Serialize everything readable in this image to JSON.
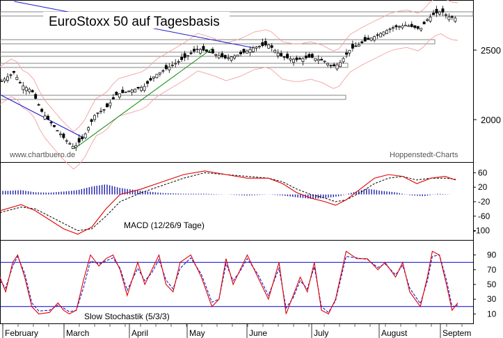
{
  "chart_data": [
    {
      "type": "candlestick",
      "title": "EuroStoxx 50 auf Tagesbasis",
      "source_left": "www.chartbuero.de",
      "source_right": "Hoppenstedt-Charts",
      "y_ticks": [
        2000,
        2500
      ],
      "ylim": [
        1700,
        2850
      ],
      "close_anchors": [
        [
          0,
          2270
        ],
        [
          20,
          2340
        ],
        [
          30,
          2250
        ],
        [
          45,
          2210
        ],
        [
          60,
          2050
        ],
        [
          75,
          1960
        ],
        [
          90,
          1870
        ],
        [
          105,
          1800
        ],
        [
          118,
          1870
        ],
        [
          135,
          2040
        ],
        [
          150,
          2080
        ],
        [
          165,
          2180
        ],
        [
          185,
          2210
        ],
        [
          205,
          2240
        ],
        [
          220,
          2320
        ],
        [
          240,
          2380
        ],
        [
          260,
          2440
        ],
        [
          280,
          2510
        ],
        [
          300,
          2480
        ],
        [
          320,
          2440
        ],
        [
          340,
          2470
        ],
        [
          360,
          2520
        ],
        [
          380,
          2540
        ],
        [
          400,
          2450
        ],
        [
          420,
          2430
        ],
        [
          440,
          2450
        ],
        [
          460,
          2420
        ],
        [
          470,
          2380
        ],
        [
          480,
          2400
        ],
        [
          495,
          2500
        ],
        [
          515,
          2560
        ],
        [
          535,
          2610
        ],
        [
          555,
          2660
        ],
        [
          575,
          2680
        ],
        [
          595,
          2650
        ],
        [
          605,
          2720
        ],
        [
          615,
          2760
        ],
        [
          625,
          2780
        ],
        [
          635,
          2740
        ],
        [
          645,
          2730
        ]
      ],
      "support_lines": [
        2760,
        2560,
        2470,
        2390,
        2160
      ]
    },
    {
      "type": "line",
      "label": "MACD (12/26/9 Tage)",
      "y_ticks": [
        60,
        20,
        -20,
        -60,
        -100
      ],
      "ylim": [
        -120,
        80
      ],
      "macd": [
        [
          0,
          -45
        ],
        [
          30,
          -28
        ],
        [
          50,
          -45
        ],
        [
          70,
          -70
        ],
        [
          90,
          -95
        ],
        [
          110,
          -110
        ],
        [
          130,
          -90
        ],
        [
          150,
          -40
        ],
        [
          170,
          0
        ],
        [
          200,
          15
        ],
        [
          230,
          35
        ],
        [
          260,
          55
        ],
        [
          290,
          65
        ],
        [
          320,
          55
        ],
        [
          350,
          45
        ],
        [
          380,
          45
        ],
        [
          400,
          30
        ],
        [
          420,
          5
        ],
        [
          440,
          -10
        ],
        [
          460,
          -20
        ],
        [
          475,
          -30
        ],
        [
          490,
          -15
        ],
        [
          510,
          15
        ],
        [
          530,
          45
        ],
        [
          550,
          55
        ],
        [
          570,
          50
        ],
        [
          590,
          30
        ],
        [
          610,
          45
        ],
        [
          630,
          50
        ],
        [
          645,
          40
        ]
      ],
      "signal": [
        [
          0,
          -50
        ],
        [
          30,
          -35
        ],
        [
          50,
          -40
        ],
        [
          70,
          -60
        ],
        [
          90,
          -80
        ],
        [
          110,
          -100
        ],
        [
          130,
          -95
        ],
        [
          150,
          -60
        ],
        [
          170,
          -20
        ],
        [
          200,
          5
        ],
        [
          230,
          25
        ],
        [
          260,
          45
        ],
        [
          290,
          60
        ],
        [
          320,
          55
        ],
        [
          350,
          50
        ],
        [
          380,
          45
        ],
        [
          400,
          35
        ],
        [
          420,
          15
        ],
        [
          440,
          0
        ],
        [
          460,
          -10
        ],
        [
          475,
          -20
        ],
        [
          490,
          -15
        ],
        [
          510,
          5
        ],
        [
          530,
          30
        ],
        [
          550,
          45
        ],
        [
          570,
          50
        ],
        [
          590,
          40
        ],
        [
          610,
          45
        ],
        [
          630,
          45
        ],
        [
          645,
          42
        ]
      ],
      "histogram": [
        [
          10,
          10
        ],
        [
          30,
          12
        ],
        [
          50,
          6
        ],
        [
          70,
          5
        ],
        [
          90,
          8
        ],
        [
          110,
          12
        ],
        [
          130,
          22
        ],
        [
          150,
          28
        ],
        [
          170,
          18
        ],
        [
          200,
          10
        ],
        [
          230,
          4
        ],
        [
          260,
          2
        ],
        [
          290,
          2
        ],
        [
          320,
          0
        ],
        [
          350,
          -3
        ],
        [
          380,
          0
        ],
        [
          400,
          -3
        ],
        [
          420,
          -8
        ],
        [
          440,
          -12
        ],
        [
          460,
          -10
        ],
        [
          480,
          -5
        ],
        [
          500,
          6
        ],
        [
          520,
          16
        ],
        [
          540,
          10
        ],
        [
          560,
          6
        ],
        [
          580,
          -2
        ],
        [
          600,
          -5
        ],
        [
          620,
          2
        ],
        [
          640,
          0
        ]
      ]
    },
    {
      "type": "line",
      "label": "Slow Stochastik (5/3/3)",
      "y_ticks": [
        90,
        70,
        50,
        30,
        10
      ],
      "ylim": [
        0,
        100
      ],
      "reference_lines": [
        80,
        20
      ],
      "k_line": [
        [
          0,
          60
        ],
        [
          8,
          40
        ],
        [
          18,
          80
        ],
        [
          25,
          90
        ],
        [
          35,
          60
        ],
        [
          45,
          20
        ],
        [
          55,
          10
        ],
        [
          70,
          12
        ],
        [
          82,
          25
        ],
        [
          90,
          15
        ],
        [
          98,
          10
        ],
        [
          108,
          15
        ],
        [
          118,
          55
        ],
        [
          128,
          90
        ],
        [
          140,
          75
        ],
        [
          150,
          85
        ],
        [
          160,
          90
        ],
        [
          170,
          70
        ],
        [
          180,
          35
        ],
        [
          195,
          80
        ],
        [
          205,
          50
        ],
        [
          215,
          70
        ],
        [
          225,
          90
        ],
        [
          235,
          50
        ],
        [
          245,
          40
        ],
        [
          255,
          80
        ],
        [
          270,
          90
        ],
        [
          285,
          60
        ],
        [
          300,
          20
        ],
        [
          310,
          30
        ],
        [
          320,
          85
        ],
        [
          330,
          50
        ],
        [
          340,
          70
        ],
        [
          350,
          90
        ],
        [
          365,
          60
        ],
        [
          380,
          30
        ],
        [
          395,
          80
        ],
        [
          405,
          10
        ],
        [
          415,
          35
        ],
        [
          425,
          60
        ],
        [
          435,
          40
        ],
        [
          445,
          80
        ],
        [
          455,
          15
        ],
        [
          465,
          10
        ],
        [
          475,
          30
        ],
        [
          490,
          95
        ],
        [
          505,
          85
        ],
        [
          520,
          85
        ],
        [
          535,
          70
        ],
        [
          545,
          80
        ],
        [
          560,
          60
        ],
        [
          570,
          80
        ],
        [
          580,
          40
        ],
        [
          595,
          20
        ],
        [
          605,
          60
        ],
        [
          612,
          95
        ],
        [
          622,
          90
        ],
        [
          632,
          50
        ],
        [
          640,
          15
        ],
        [
          648,
          25
        ]
      ],
      "d_line": [
        [
          0,
          55
        ],
        [
          8,
          45
        ],
        [
          18,
          75
        ],
        [
          25,
          88
        ],
        [
          35,
          65
        ],
        [
          45,
          25
        ],
        [
          55,
          14
        ],
        [
          70,
          15
        ],
        [
          82,
          22
        ],
        [
          90,
          18
        ],
        [
          98,
          13
        ],
        [
          108,
          15
        ],
        [
          118,
          45
        ],
        [
          128,
          82
        ],
        [
          140,
          78
        ],
        [
          150,
          82
        ],
        [
          160,
          86
        ],
        [
          170,
          72
        ],
        [
          180,
          42
        ],
        [
          195,
          72
        ],
        [
          205,
          55
        ],
        [
          215,
          66
        ],
        [
          225,
          84
        ],
        [
          235,
          56
        ],
        [
          245,
          44
        ],
        [
          255,
          72
        ],
        [
          270,
          86
        ],
        [
          285,
          64
        ],
        [
          300,
          26
        ],
        [
          310,
          30
        ],
        [
          320,
          78
        ],
        [
          330,
          55
        ],
        [
          340,
          68
        ],
        [
          350,
          85
        ],
        [
          365,
          64
        ],
        [
          380,
          35
        ],
        [
          395,
          72
        ],
        [
          405,
          18
        ],
        [
          415,
          32
        ],
        [
          425,
          55
        ],
        [
          435,
          44
        ],
        [
          445,
          74
        ],
        [
          455,
          20
        ],
        [
          465,
          12
        ],
        [
          475,
          28
        ],
        [
          490,
          88
        ],
        [
          505,
          86
        ],
        [
          520,
          84
        ],
        [
          535,
          73
        ],
        [
          545,
          78
        ],
        [
          560,
          63
        ],
        [
          570,
          76
        ],
        [
          580,
          45
        ],
        [
          595,
          24
        ],
        [
          605,
          55
        ],
        [
          612,
          88
        ],
        [
          622,
          90
        ],
        [
          632,
          56
        ],
        [
          640,
          20
        ],
        [
          648,
          22
        ]
      ]
    }
  ],
  "months": [
    "February",
    "March",
    "April",
    "May",
    "June",
    "July",
    "August",
    "Septem"
  ],
  "colors": {
    "candle": "#000000",
    "band": "#f4a0a0",
    "macd": "#e00000",
    "signal": "#000000",
    "histogram": "#1a1aaa",
    "stoch_k": "#e00000",
    "stoch_d": "#1a1acc",
    "ref_line": "#0000cc",
    "trend_blue": "#1a1acc",
    "trend_green": "#008800"
  }
}
